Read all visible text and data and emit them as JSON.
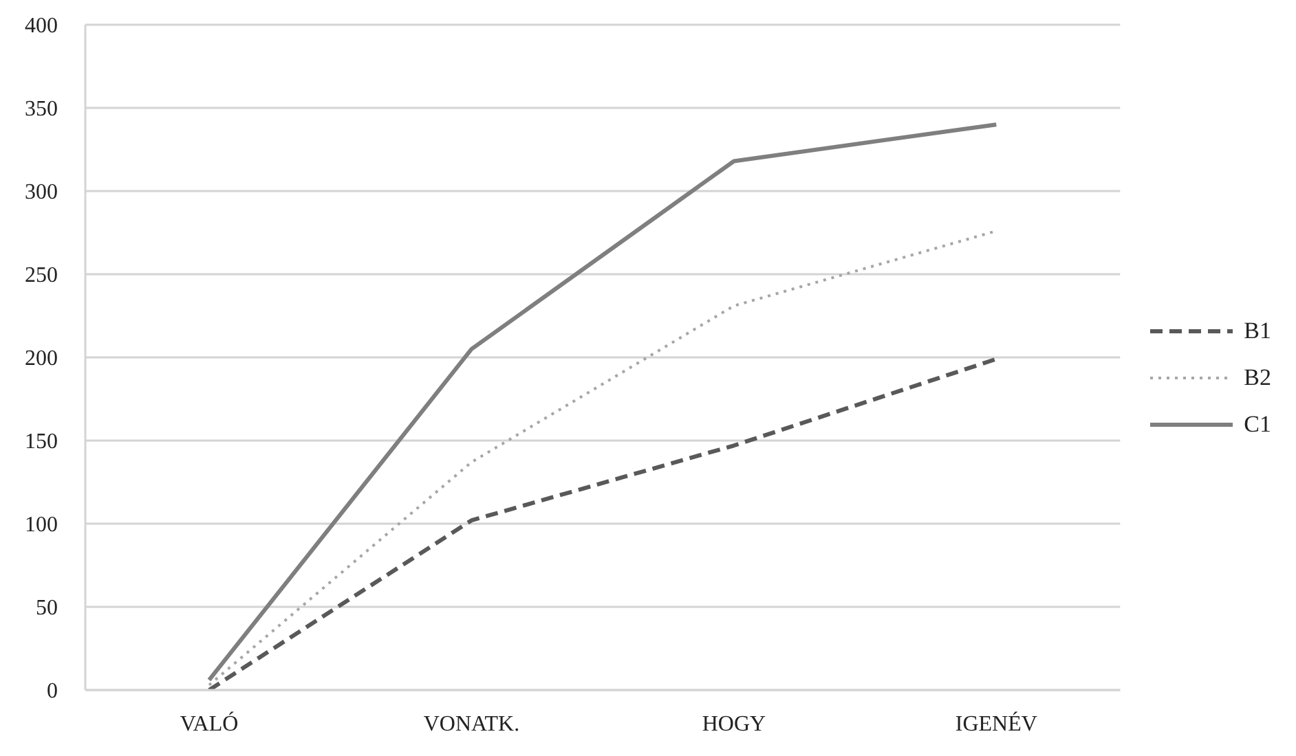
{
  "chart_data": {
    "type": "line",
    "categories": [
      "VALÓ",
      "VONATK.",
      "HOGY",
      "IGENÉV"
    ],
    "series": [
      {
        "name": "B1",
        "color": "#595959",
        "line_style": "dashed",
        "values": [
          0,
          102,
          147,
          199
        ]
      },
      {
        "name": "B2",
        "color": "#a6a6a6",
        "line_style": "dotted",
        "values": [
          3,
          137,
          231,
          276
        ]
      },
      {
        "name": "C1",
        "color": "#7f7f7f",
        "line_style": "solid",
        "values": [
          6,
          205,
          318,
          340
        ]
      }
    ],
    "ylim": [
      0,
      400
    ],
    "yticks": [
      0,
      50,
      100,
      150,
      200,
      250,
      300,
      350,
      400
    ],
    "grid": "y",
    "legend": "right",
    "marker": "none"
  }
}
